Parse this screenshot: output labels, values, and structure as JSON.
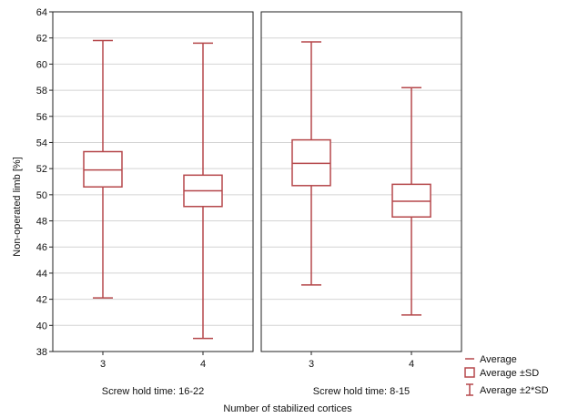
{
  "chart_data": {
    "type": "boxplot",
    "ylabel": "Non-operated limb [%]",
    "xlabel": "Number of stabilized cortices",
    "ylim": [
      38,
      64
    ],
    "yticks": [
      38,
      40,
      42,
      44,
      46,
      48,
      50,
      52,
      54,
      56,
      58,
      60,
      62,
      64
    ],
    "grid": true,
    "series_color": "#b5474a",
    "panels": [
      {
        "label": "Screw hold time: 16-22",
        "categories": [
          "3",
          "4"
        ],
        "boxes": [
          {
            "average": 51.9,
            "sd_low": 50.6,
            "sd_high": 53.3,
            "sd2_low": 42.1,
            "sd2_high": 61.8
          },
          {
            "average": 50.3,
            "sd_low": 49.1,
            "sd_high": 51.5,
            "sd2_low": 39.0,
            "sd2_high": 61.6
          }
        ]
      },
      {
        "label": "Screw hold time: 8-15",
        "categories": [
          "3",
          "4"
        ],
        "boxes": [
          {
            "average": 52.4,
            "sd_low": 50.7,
            "sd_high": 54.2,
            "sd2_low": 43.1,
            "sd2_high": 61.7
          },
          {
            "average": 49.5,
            "sd_low": 48.3,
            "sd_high": 50.8,
            "sd2_low": 40.8,
            "sd2_high": 58.2
          }
        ]
      }
    ],
    "legend": {
      "position": "bottom-right",
      "entries": [
        "Average",
        "Average ±SD",
        "Average ±2*SD"
      ]
    }
  }
}
